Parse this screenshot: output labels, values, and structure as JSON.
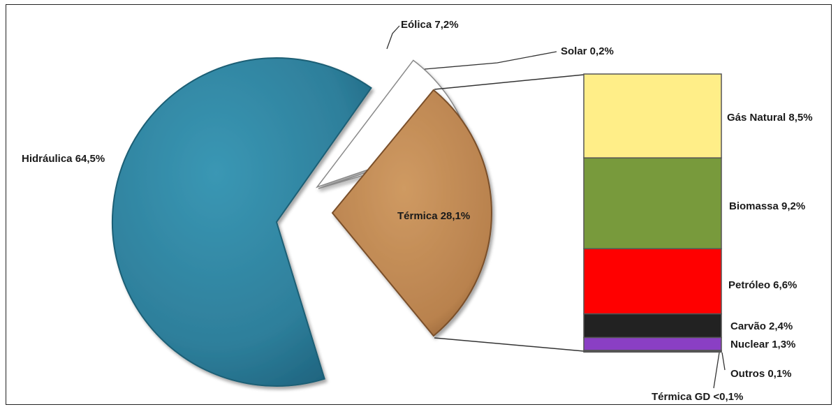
{
  "chart_data": {
    "type": "pie",
    "title": "",
    "slices": [
      {
        "label": "Hidráulica 64,5%",
        "value": 64.5,
        "color": "#2e7f9b"
      },
      {
        "label": "Eólica 7,2%",
        "value": 7.2,
        "color": "#ffffff"
      },
      {
        "label": "Solar 0,2%",
        "value": 0.2,
        "color": "#ffffff"
      },
      {
        "label": "Térmica 28,1%",
        "value": 28.1,
        "color": "#c08a55"
      }
    ],
    "breakdown": {
      "of": "Térmica 28,1%",
      "type": "stacked-bar",
      "segments": [
        {
          "label": "Gás Natural 8,5%",
          "value": 8.5,
          "color": "#ffee88"
        },
        {
          "label": "Biomassa 9,2%",
          "value": 9.2,
          "color": "#789a3c"
        },
        {
          "label": "Petróleo 6,6%",
          "value": 6.6,
          "color": "#ff0000"
        },
        {
          "label": "Carvão 2,4%",
          "value": 2.4,
          "color": "#222222"
        },
        {
          "label": "Nuclear 1,3%",
          "value": 1.3,
          "color": "#8a3fc4"
        },
        {
          "label": "Outros 0,1%",
          "value": 0.1,
          "color": "#dddddd"
        },
        {
          "label": "Térmica GD <0,1%",
          "value": 0.05,
          "color": "#dddddd"
        }
      ]
    }
  }
}
